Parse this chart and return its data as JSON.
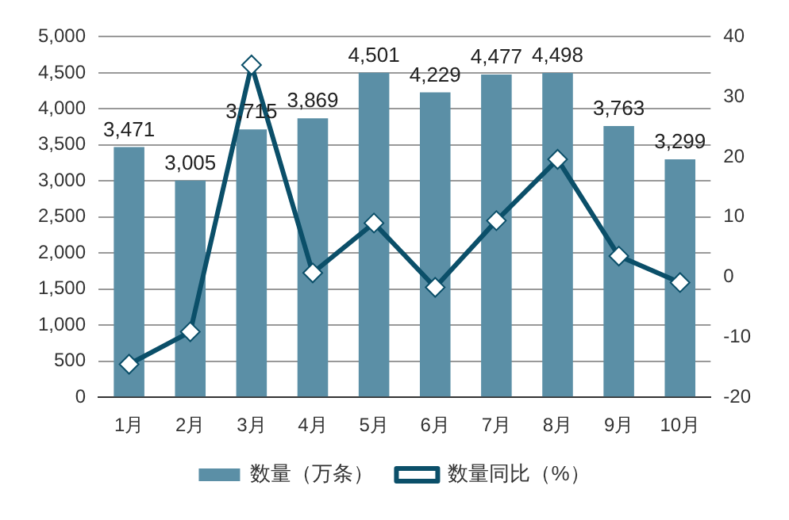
{
  "chart_data": {
    "type": "bar",
    "categories": [
      "1月",
      "2月",
      "3月",
      "4月",
      "5月",
      "6月",
      "7月",
      "8月",
      "9月",
      "10月"
    ],
    "series": [
      {
        "name": "数量（万条）",
        "color": "#5b8fa6",
        "values": [
          3471,
          3005,
          3715,
          3869,
          4501,
          4229,
          4477,
          4498,
          3763,
          3299
        ],
        "value_labels": [
          "3,471",
          "3,005",
          "3,715",
          "3,869",
          "4,501",
          "4,229",
          "4,477",
          "4,498",
          "3,763",
          "3,299"
        ]
      },
      {
        "name": "数量同比（%）",
        "type": "line",
        "axis": "y2",
        "color": "#0b4f69",
        "marker": "diamond",
        "values": [
          -14.5,
          -9.1,
          35.3,
          0.7,
          9.0,
          -1.7,
          9.4,
          19.6,
          3.5,
          -0.9
        ]
      }
    ],
    "ylim": [
      0,
      5000
    ],
    "yticks": [
      0,
      {
        "value": 500,
        "label": "500"
      },
      {
        "value": 1000,
        "label": "1,000"
      },
      {
        "value": 1500,
        "label": "1,500"
      },
      {
        "value": 2000,
        "label": "2,000"
      },
      {
        "value": 2500,
        "label": "2,500"
      },
      {
        "value": 3000,
        "label": "3,000"
      },
      {
        "value": 3500,
        "label": "3,500"
      },
      {
        "value": 4000,
        "label": "4,000"
      },
      {
        "value": 4500,
        "label": "4,500"
      },
      {
        "value": 5000,
        "label": "5,000"
      }
    ],
    "y2lim": [
      -20,
      40
    ],
    "y2ticks": [
      -20,
      -10,
      0,
      10,
      20,
      30,
      40
    ],
    "grid": "y",
    "legend": "bottom"
  }
}
